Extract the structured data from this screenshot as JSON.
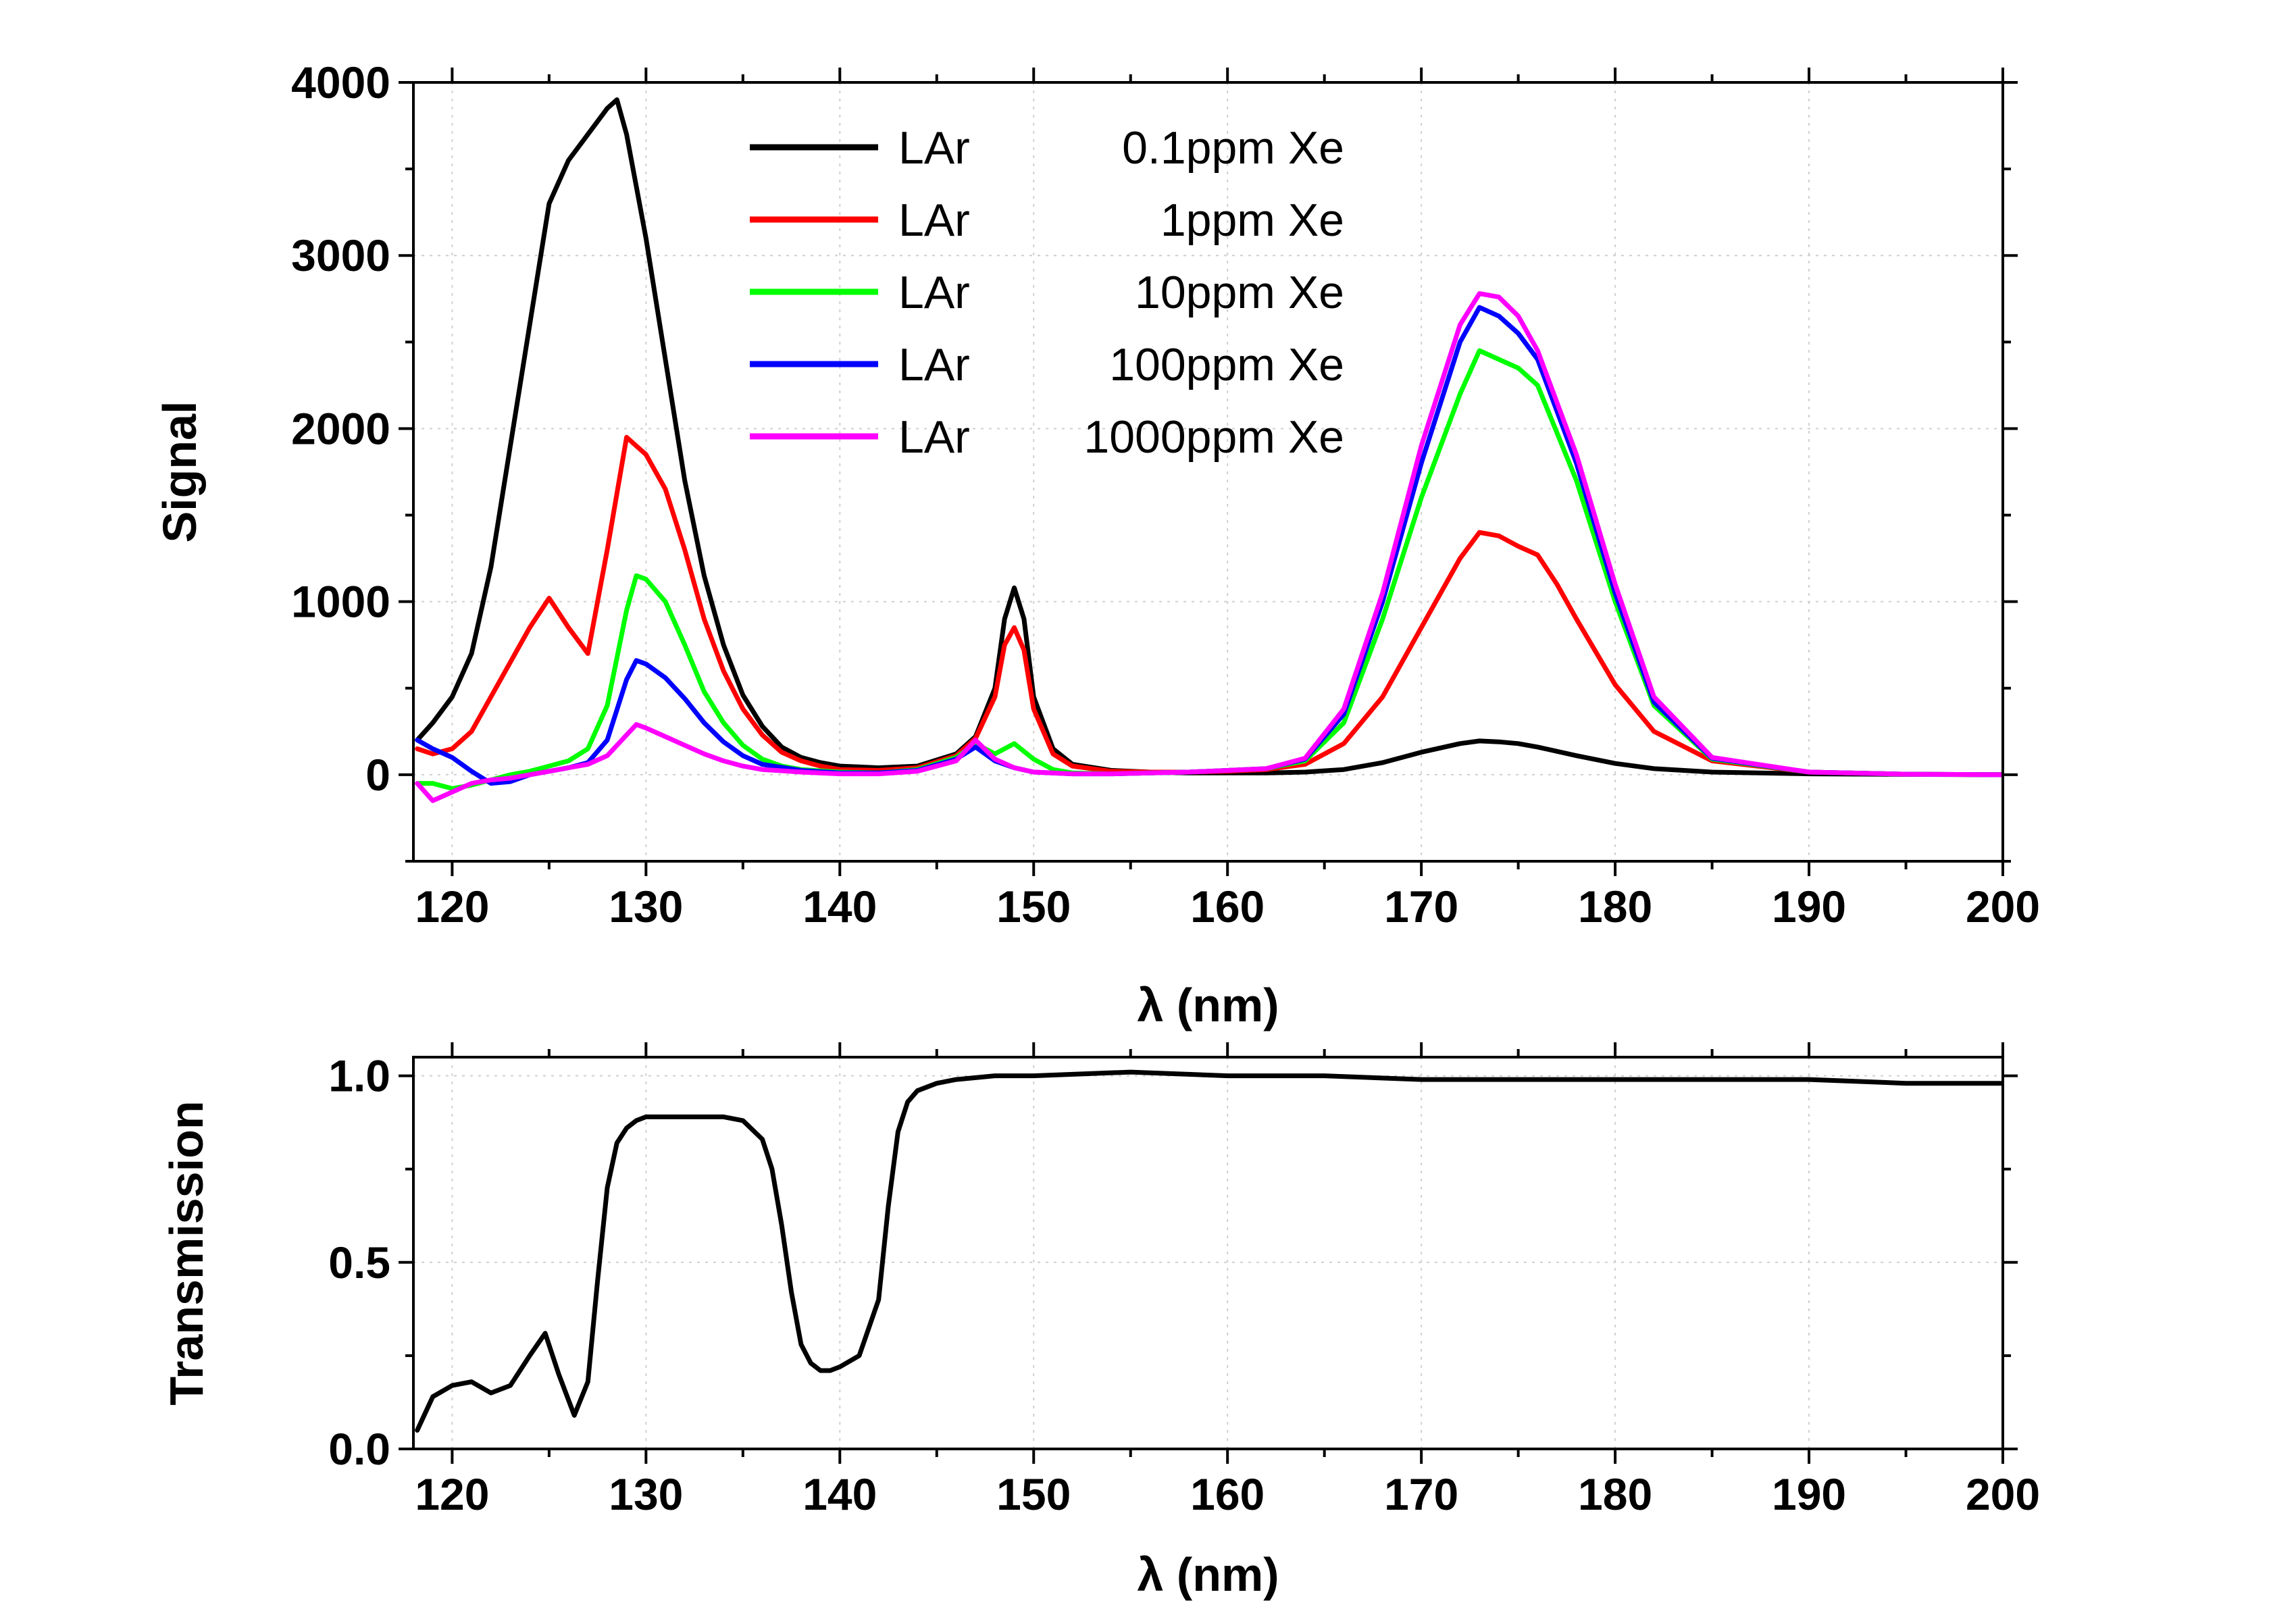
{
  "chart_data": [
    {
      "type": "line",
      "title": "",
      "xlabel": "λ (nm)",
      "ylabel": "Signal",
      "xlim": [
        118,
        200
      ],
      "ylim": [
        -500,
        4000
      ],
      "xticks": [
        120,
        130,
        140,
        150,
        160,
        170,
        180,
        190,
        200
      ],
      "yticks": [
        0,
        1000,
        2000,
        3000,
        4000
      ],
      "xtick_labels": [
        "120",
        "130",
        "140",
        "150",
        "160",
        "170",
        "180",
        "190",
        "200"
      ],
      "ytick_labels": [
        "0",
        "1000",
        "2000",
        "3000",
        "4000"
      ],
      "grid": true,
      "legend_position": "top-center",
      "series": [
        {
          "name": "LAr    0.1ppm Xe",
          "legend_prefix": "LAr",
          "legend_suffix": "0.1ppm Xe",
          "color": "#000000",
          "x": [
            118.2,
            119,
            120,
            121,
            122,
            123,
            124,
            125,
            126,
            127,
            128,
            128.5,
            129,
            130,
            131,
            132,
            133,
            134,
            135,
            136,
            137,
            138,
            139,
            140,
            142,
            144,
            146,
            147,
            148,
            148.5,
            149,
            149.5,
            150,
            151,
            152,
            154,
            156,
            158,
            160,
            162,
            164,
            166,
            168,
            170,
            172,
            173,
            174,
            175,
            176,
            178,
            180,
            182,
            185,
            190,
            195,
            200
          ],
          "y": [
            200,
            300,
            450,
            700,
            1200,
            1900,
            2600,
            3300,
            3550,
            3700,
            3850,
            3900,
            3700,
            3100,
            2400,
            1700,
            1150,
            750,
            460,
            280,
            160,
            100,
            70,
            50,
            40,
            50,
            120,
            220,
            500,
            900,
            1080,
            900,
            450,
            150,
            60,
            25,
            15,
            10,
            10,
            10,
            15,
            30,
            70,
            130,
            180,
            195,
            190,
            180,
            160,
            110,
            65,
            35,
            15,
            5,
            2,
            0
          ]
        },
        {
          "name": "LAr      1ppm Xe",
          "legend_prefix": "LAr",
          "legend_suffix": "1ppm Xe",
          "color": "#ff0000",
          "x": [
            118.2,
            119,
            120,
            121,
            122,
            123,
            124,
            125,
            126,
            127,
            128,
            129,
            130,
            131,
            132,
            133,
            134,
            135,
            136,
            137,
            138,
            139,
            140,
            142,
            144,
            146,
            147,
            148,
            148.5,
            149,
            149.5,
            150,
            151,
            152,
            154,
            156,
            158,
            160,
            162,
            164,
            166,
            168,
            170,
            172,
            173,
            174,
            175,
            176,
            177,
            178,
            180,
            182,
            185,
            190,
            195,
            200
          ],
          "y": [
            150,
            120,
            150,
            250,
            450,
            650,
            850,
            1020,
            850,
            700,
            1300,
            1950,
            1850,
            1650,
            1300,
            900,
            600,
            380,
            230,
            130,
            80,
            50,
            30,
            25,
            40,
            110,
            210,
            450,
            750,
            850,
            720,
            380,
            120,
            50,
            20,
            15,
            15,
            20,
            30,
            60,
            180,
            450,
            850,
            1250,
            1400,
            1380,
            1320,
            1270,
            1100,
            900,
            520,
            250,
            80,
            15,
            3,
            0
          ]
        },
        {
          "name": "LAr    10ppm Xe",
          "legend_prefix": "LAr",
          "legend_suffix": "10ppm Xe",
          "color": "#00ff00",
          "x": [
            118.2,
            119,
            120,
            121,
            122,
            123,
            124,
            125,
            126,
            127,
            128,
            129,
            129.5,
            130,
            131,
            132,
            133,
            134,
            135,
            136,
            137,
            138,
            140,
            142,
            144,
            146,
            147,
            148,
            149,
            150,
            151,
            152,
            154,
            156,
            158,
            160,
            162,
            164,
            166,
            168,
            170,
            172,
            173,
            174,
            175,
            176,
            178,
            180,
            182,
            185,
            190,
            195,
            200
          ],
          "y": [
            -50,
            -50,
            -80,
            -60,
            -30,
            0,
            20,
            50,
            80,
            150,
            400,
            950,
            1150,
            1130,
            1000,
            750,
            480,
            300,
            170,
            90,
            50,
            30,
            15,
            10,
            30,
            100,
            180,
            120,
            180,
            90,
            30,
            10,
            5,
            10,
            15,
            25,
            35,
            80,
            300,
            900,
            1600,
            2200,
            2450,
            2400,
            2350,
            2250,
            1700,
            1000,
            400,
            90,
            15,
            3,
            0
          ]
        },
        {
          "name": "LAr   100ppm Xe",
          "legend_prefix": "LAr",
          "legend_suffix": "100ppm Xe",
          "color": "#0000ff",
          "x": [
            118.2,
            119,
            120,
            121,
            122,
            123,
            124,
            125,
            126,
            127,
            128,
            129,
            129.5,
            130,
            131,
            132,
            133,
            134,
            135,
            136,
            138,
            140,
            142,
            144,
            146,
            147,
            148,
            149,
            150,
            152,
            154,
            156,
            158,
            160,
            162,
            164,
            166,
            168,
            170,
            172,
            173,
            174,
            175,
            176,
            178,
            180,
            182,
            185,
            190,
            195,
            200
          ],
          "y": [
            200,
            150,
            100,
            20,
            -50,
            -40,
            0,
            20,
            40,
            70,
            200,
            550,
            660,
            640,
            560,
            440,
            300,
            190,
            110,
            60,
            25,
            10,
            10,
            25,
            90,
            160,
            80,
            40,
            15,
            5,
            5,
            10,
            15,
            25,
            35,
            90,
            350,
            1000,
            1800,
            2500,
            2700,
            2650,
            2550,
            2400,
            1800,
            1050,
            420,
            95,
            15,
            3,
            0
          ]
        },
        {
          "name": "LAr 1000ppm Xe",
          "legend_prefix": "LAr",
          "legend_suffix": "1000ppm Xe",
          "color": "#ff00ff",
          "x": [
            118.2,
            119,
            120,
            121,
            122,
            123,
            124,
            125,
            126,
            127,
            128,
            129,
            129.5,
            130,
            131,
            132,
            133,
            134,
            135,
            136,
            138,
            140,
            142,
            144,
            146,
            147,
            148,
            149,
            150,
            152,
            154,
            156,
            158,
            160,
            162,
            164,
            166,
            168,
            170,
            172,
            173,
            174,
            175,
            176,
            178,
            180,
            182,
            185,
            190,
            195,
            200
          ],
          "y": [
            -50,
            -150,
            -100,
            -50,
            -30,
            -20,
            0,
            20,
            40,
            60,
            110,
            230,
            290,
            270,
            220,
            170,
            120,
            80,
            50,
            30,
            15,
            5,
            5,
            20,
            80,
            200,
            90,
            40,
            15,
            5,
            5,
            10,
            15,
            25,
            35,
            95,
            380,
            1050,
            1900,
            2600,
            2780,
            2760,
            2650,
            2450,
            1850,
            1100,
            450,
            100,
            15,
            3,
            0
          ]
        }
      ]
    },
    {
      "type": "line",
      "title": "",
      "xlabel": "λ (nm)",
      "ylabel": "Transmission",
      "xlim": [
        118,
        200
      ],
      "ylim": [
        0,
        1.05
      ],
      "xticks": [
        120,
        130,
        140,
        150,
        160,
        170,
        180,
        190,
        200
      ],
      "yticks": [
        0.0,
        0.5,
        1.0
      ],
      "xtick_labels": [
        "120",
        "130",
        "140",
        "150",
        "160",
        "170",
        "180",
        "190",
        "200"
      ],
      "ytick_labels": [
        "0.0",
        "0.5",
        "1.0"
      ],
      "grid": true,
      "series": [
        {
          "name": "Transmission",
          "color": "#000000",
          "x": [
            118.2,
            119,
            120,
            121,
            122,
            123,
            124,
            124.8,
            125.5,
            126.3,
            127,
            127.5,
            128,
            128.5,
            129,
            129.5,
            130,
            131,
            132,
            133,
            134,
            135,
            136,
            136.5,
            137,
            137.5,
            138,
            138.5,
            139,
            139.5,
            140,
            141,
            142,
            142.5,
            143,
            143.5,
            144,
            145,
            146,
            148,
            150,
            155,
            160,
            165,
            170,
            175,
            180,
            185,
            190,
            195,
            200
          ],
          "y": [
            0.05,
            0.14,
            0.17,
            0.18,
            0.15,
            0.17,
            0.25,
            0.31,
            0.2,
            0.09,
            0.18,
            0.45,
            0.7,
            0.82,
            0.86,
            0.88,
            0.89,
            0.89,
            0.89,
            0.89,
            0.89,
            0.88,
            0.83,
            0.75,
            0.6,
            0.42,
            0.28,
            0.23,
            0.21,
            0.21,
            0.22,
            0.25,
            0.4,
            0.65,
            0.85,
            0.93,
            0.96,
            0.98,
            0.99,
            1.0,
            1.0,
            1.01,
            1.0,
            1.0,
            0.99,
            0.99,
            0.99,
            0.99,
            0.99,
            0.98,
            0.98
          ]
        }
      ]
    }
  ]
}
